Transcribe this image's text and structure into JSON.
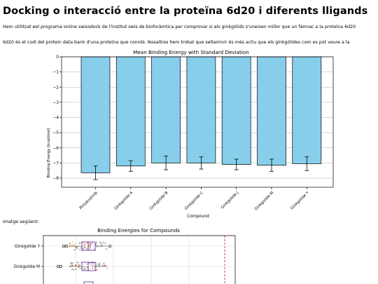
{
  "page": {
    "title": "Docking o interacció entre la proteïna 6d20 i diferents lligands",
    "intro": "Hem utilitzat eel programa online swissdock de l'institut swis de bioforàmtica per comprovar si els ginkgòlids s'uneixen millor que un fàrmac a la proteïna 6d20",
    "protein_note": "6d20 és el codi del protein data bank d'una proteïna que conntè. Nosaltres hem trobat que seltamivir és més actiu que els ginkgòlides com es pot veure a la",
    "figure_lead": "imatge següent:"
  },
  "chart_data": [
    {
      "type": "bar",
      "title": "Mean Binding Energy with Standard Deviation",
      "xlabel": "Compound",
      "ylabel": "Binding Energy (kcal/mol)",
      "categories": [
        "Pirtobrutinib",
        "Ginkgolide A",
        "Ginkgolide B",
        "Ginkgolide C",
        "Ginkgolide J",
        "Ginkgolide M",
        "Ginkgolide Y"
      ],
      "values": [
        -7.65,
        -7.2,
        -7.0,
        -7.0,
        -7.1,
        -7.15,
        -7.05
      ],
      "errors": [
        0.45,
        0.35,
        0.45,
        0.4,
        0.35,
        0.4,
        0.45
      ],
      "ylim": [
        -8.6,
        0
      ],
      "yticks": [
        0,
        -1,
        -2,
        -3,
        -4,
        -5,
        -6,
        -7,
        -8
      ],
      "grid": true,
      "bar_color": "#87ceeb",
      "bar_edge_color": "#000000"
    },
    {
      "type": "scatter",
      "title": "Binding Energies for Compounds",
      "categories": [
        "Ginkgolide Y",
        "Ginkgolide M"
      ],
      "grid": true,
      "reference_line_color": "#d62728"
    }
  ]
}
